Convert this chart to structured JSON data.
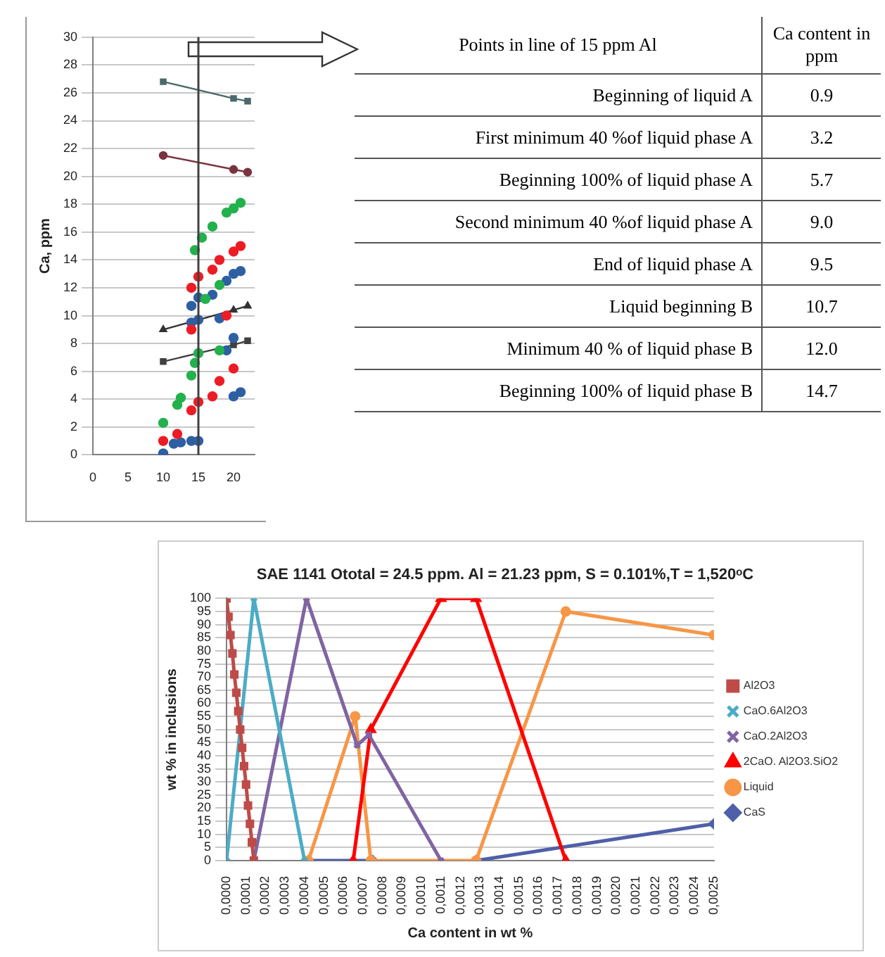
{
  "chart_data": [
    {
      "type": "scatter",
      "ylabel": "Ca, ppm",
      "xlim": [
        0,
        23
      ],
      "xticks": [
        0,
        5,
        10,
        15,
        20
      ],
      "ylim": [
        0,
        30
      ],
      "yticks": [
        0,
        2,
        4,
        6,
        8,
        10,
        12,
        14,
        16,
        18,
        20,
        22,
        24,
        26,
        28,
        30
      ],
      "grid": "y",
      "marker": "circle",
      "ref_lines": [
        {
          "axis": "x",
          "value": 15,
          "color": "#404040"
        }
      ],
      "series": [
        {
          "color": "#22b14c",
          "x": [
            10,
            12,
            12.5,
            14,
            14.5,
            15,
            14.5,
            15.5,
            17,
            18,
            19,
            20,
            21,
            16,
            18
          ],
          "values": [
            2.3,
            3.6,
            4.1,
            5.7,
            6.6,
            7.3,
            14.7,
            15.6,
            16.4,
            7.5,
            17.4,
            17.7,
            18.1,
            11.2,
            12.2
          ]
        },
        {
          "color": "#ed1c24",
          "x": [
            10,
            12,
            14,
            15,
            17,
            18,
            20,
            14,
            14,
            15,
            17,
            18,
            20,
            21,
            19
          ],
          "values": [
            1,
            1.5,
            3.2,
            3.8,
            4.2,
            5.3,
            6.2,
            9,
            12,
            12.8,
            13.3,
            14,
            14.6,
            15,
            10
          ]
        },
        {
          "color": "#2e5fa3",
          "x": [
            10,
            11.5,
            12.5,
            14,
            15,
            14,
            15,
            14,
            15,
            18,
            17,
            19,
            20,
            21,
            19,
            20,
            21,
            20
          ],
          "values": [
            0.1,
            0.8,
            0.9,
            1,
            1,
            10.7,
            11.3,
            9.5,
            9.7,
            9.8,
            11.5,
            12.5,
            13,
            13.2,
            7.5,
            4.2,
            4.5,
            8.4
          ]
        },
        {
          "type": "line",
          "color": "#4a6a6a",
          "marker": "square",
          "x": [
            10,
            20,
            22
          ],
          "values": [
            26.8,
            25.6,
            25.4
          ]
        },
        {
          "type": "line",
          "color": "#7a3340",
          "marker": "circle",
          "x": [
            10,
            20,
            22
          ],
          "values": [
            21.5,
            20.5,
            20.3
          ]
        },
        {
          "type": "line",
          "color": "#333333",
          "marker": "triangle",
          "x": [
            10,
            20,
            22
          ],
          "values": [
            9,
            10.4,
            10.7
          ]
        },
        {
          "type": "line",
          "color": "#404040",
          "marker": "square",
          "x": [
            10,
            20,
            22
          ],
          "values": [
            6.7,
            7.9,
            8.2
          ]
        }
      ]
    },
    {
      "type": "other",
      "annotations": [
        "Points in line of 15 ppm Al",
        "Ca content in ppm",
        "Beginning of liquid A",
        "0.9",
        "First minimum 40 %of liquid phase A",
        "3.2",
        "Beginning 100% of liquid phase A",
        "5.7",
        "Second minimum 40 %of  liquid phase A",
        "9.0",
        "End of liquid phase A",
        "9.5",
        "Liquid beginning B",
        "10.7",
        "Minimum 40 % of liquid phase B",
        "12.0",
        "Beginning 100% of liquid phase B",
        "14.7"
      ]
    },
    {
      "type": "line",
      "title": "SAE 1141 Ototal = 24.5 ppm. Al = 21.23 ppm, S = 0.101%,T = 1,520ᵒC",
      "xlabel": "Ca content in wt %",
      "ylabel": "wt % in inclusions",
      "xlim": [
        0,
        0.0025
      ],
      "xticks": [
        {
          "value": 0,
          "label": "0,0000"
        },
        {
          "value": 0.0001,
          "label": "0,0001"
        },
        {
          "value": 0.0002,
          "label": "0,0002"
        },
        {
          "value": 0.0003,
          "label": "0,0003"
        },
        {
          "value": 0.0004,
          "label": "0,0004"
        },
        {
          "value": 0.0005,
          "label": "0,0005"
        },
        {
          "value": 0.0006,
          "label": "0,0006"
        },
        {
          "value": 0.0007,
          "label": "0,0007"
        },
        {
          "value": 0.0008,
          "label": "0,0008"
        },
        {
          "value": 0.0009,
          "label": "0,0009"
        },
        {
          "value": 0.001,
          "label": "0,0010"
        },
        {
          "value": 0.0011,
          "label": "0,0011"
        },
        {
          "value": 0.0012,
          "label": "0,0012"
        },
        {
          "value": 0.0013,
          "label": "0,0013"
        },
        {
          "value": 0.0014,
          "label": "0,0014"
        },
        {
          "value": 0.0015,
          "label": "0,0015"
        },
        {
          "value": 0.0016,
          "label": "0,0016"
        },
        {
          "value": 0.0017,
          "label": "0,0017"
        },
        {
          "value": 0.0018,
          "label": "0,0018"
        },
        {
          "value": 0.0019,
          "label": "0,0019"
        },
        {
          "value": 0.002,
          "label": "0,0020"
        },
        {
          "value": 0.0021,
          "label": "0,0021"
        },
        {
          "value": 0.0022,
          "label": "0,0022"
        },
        {
          "value": 0.0023,
          "label": "0,0023"
        },
        {
          "value": 0.0024,
          "label": "0,0024"
        },
        {
          "value": 0.0025,
          "label": "0,0025"
        }
      ],
      "ylim": [
        0,
        100
      ],
      "yticks": [
        0,
        5,
        10,
        15,
        20,
        25,
        30,
        35,
        40,
        45,
        50,
        55,
        60,
        65,
        70,
        75,
        80,
        85,
        90,
        95,
        100
      ],
      "grid": "y",
      "legend": "right",
      "series": [
        {
          "name": "Al2O3",
          "color": "#be4b48",
          "marker": "square",
          "x": [
            0,
            1e-05,
            2e-05,
            3e-05,
            4e-05,
            5e-05,
            6e-05,
            7e-05,
            8e-05,
            9e-05,
            0.0001,
            0.00011,
            0.00012,
            0.00013,
            0.00014
          ],
          "values": [
            100,
            93,
            86,
            79,
            71,
            64,
            57,
            50,
            43,
            36,
            29,
            21,
            14,
            7,
            0
          ]
        },
        {
          "name": "CaO.6Al2O3",
          "color": "#4bacc6",
          "marker": "cross",
          "x": [
            0,
            0.00014,
            0.0004
          ],
          "values": [
            0,
            100,
            0
          ]
        },
        {
          "name": "CaO.2Al2O3",
          "color": "#8064a2",
          "marker": "cross",
          "x": [
            0.00014,
            0.00041,
            0.00067,
            0.00073,
            0.0011
          ],
          "values": [
            0,
            100,
            44,
            48,
            0
          ]
        },
        {
          "name": "2CaO. Al2O3.SiO2",
          "color": "#ff0000",
          "marker": "triangle",
          "x": [
            0.00065,
            0.00074,
            0.0011,
            0.00128,
            0.00174
          ],
          "values": [
            0,
            50,
            100,
            100,
            0
          ]
        },
        {
          "name": "Liquid",
          "color": "#f79646",
          "marker": "circle",
          "x": [
            0.00042,
            0.00066,
            0.00074,
            0.00128,
            0.00174,
            0.0025
          ],
          "values": [
            0,
            55,
            0,
            0,
            95,
            86
          ]
        },
        {
          "name": "CaS",
          "color": "#4f5fa8",
          "marker": "diamond",
          "x": [
            0.00042,
            0.00075,
            0.001,
            0.00128,
            0.0025
          ],
          "values": [
            0,
            0,
            null,
            0,
            14
          ]
        }
      ]
    }
  ]
}
